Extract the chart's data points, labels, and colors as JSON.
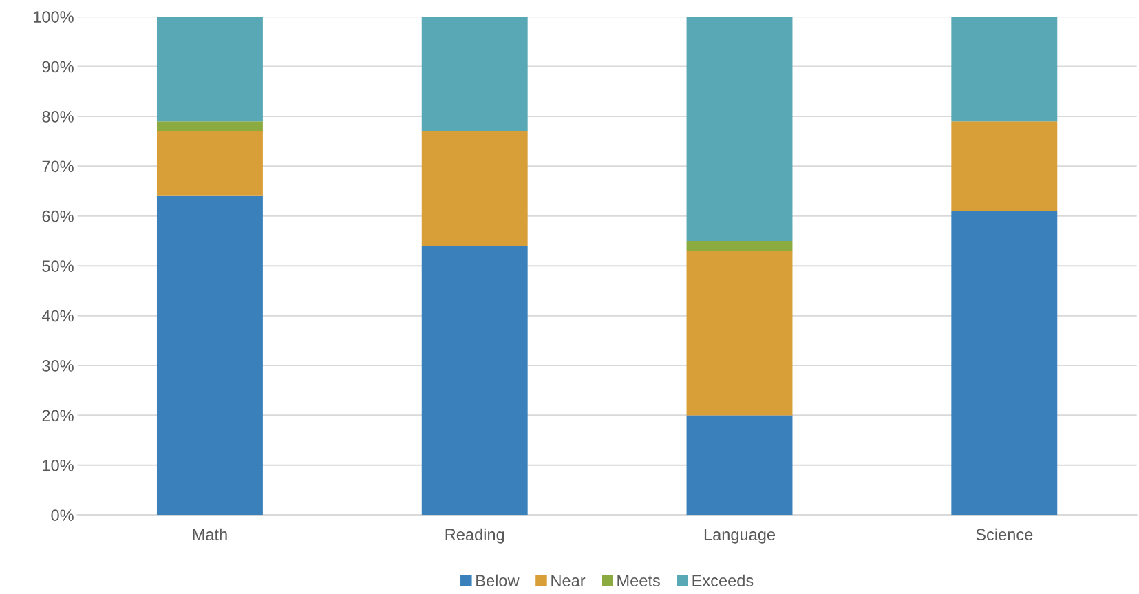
{
  "chart_data": {
    "type": "bar",
    "stacked": true,
    "categories": [
      "Math",
      "Reading",
      "Language",
      "Science"
    ],
    "series": [
      {
        "name": "Below",
        "color": "#3a80bb",
        "values": [
          64,
          54,
          20,
          61
        ]
      },
      {
        "name": "Near",
        "color": "#d89e37",
        "values": [
          13,
          23,
          33,
          18
        ]
      },
      {
        "name": "Meets",
        "color": "#8bab41",
        "values": [
          2,
          0,
          2,
          0
        ]
      },
      {
        "name": "Exceeds",
        "color": "#59a8b5",
        "values": [
          21,
          23,
          45,
          21
        ]
      }
    ],
    "ylim": [
      0,
      100
    ],
    "yticks": [
      {
        "value": 0,
        "label": "0%"
      },
      {
        "value": 10,
        "label": "10%"
      },
      {
        "value": 20,
        "label": "20%"
      },
      {
        "value": 30,
        "label": "30%"
      },
      {
        "value": 40,
        "label": "40%"
      },
      {
        "value": 50,
        "label": "50%"
      },
      {
        "value": 60,
        "label": "60%"
      },
      {
        "value": 70,
        "label": "70%"
      },
      {
        "value": 80,
        "label": "80%"
      },
      {
        "value": 90,
        "label": "90%"
      },
      {
        "value": 100,
        "label": "100%"
      }
    ],
    "grid": "y",
    "legend": "bottom"
  }
}
